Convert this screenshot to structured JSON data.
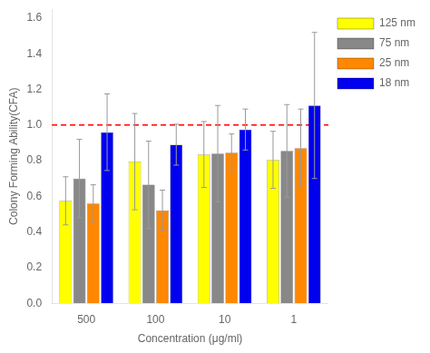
{
  "chart_data": {
    "type": "bar",
    "categories": [
      "500",
      "100",
      "10",
      "1"
    ],
    "series": [
      {
        "name": "125 nm",
        "color": "#ffff00",
        "values": [
          0.575,
          0.795,
          0.835,
          0.805
        ],
        "errors": [
          0.135,
          0.27,
          0.185,
          0.16
        ]
      },
      {
        "name": "75 nm",
        "color": "#888888",
        "values": [
          0.7,
          0.665,
          0.84,
          0.855
        ],
        "errors": [
          0.22,
          0.245,
          0.27,
          0.26
        ]
      },
      {
        "name": "25 nm",
        "color": "#ff8800",
        "values": [
          0.56,
          0.52,
          0.845,
          0.87
        ],
        "errors": [
          0.105,
          0.115,
          0.105,
          0.22
        ]
      },
      {
        "name": "18 nm",
        "color": "#0000ee",
        "values": [
          0.96,
          0.89,
          0.975,
          1.11
        ],
        "errors": [
          0.215,
          0.115,
          0.115,
          0.41
        ]
      }
    ],
    "xlabel": "Concentration (μg/ml)",
    "ylabel": "Colony Forming Ability(CFA)",
    "ylim": [
      0.0,
      1.65
    ],
    "yticks": [
      {
        "value": 0.0,
        "label": "0.0"
      },
      0.2,
      0.4,
      0.6,
      0.8,
      {
        "value": 1.0,
        "label": "1.0"
      },
      1.2,
      1.4,
      1.6
    ],
    "reference_line": {
      "y": 1.0,
      "color": "#ff0000",
      "line_style": "dashed"
    },
    "legend": "right",
    "grid": false
  }
}
